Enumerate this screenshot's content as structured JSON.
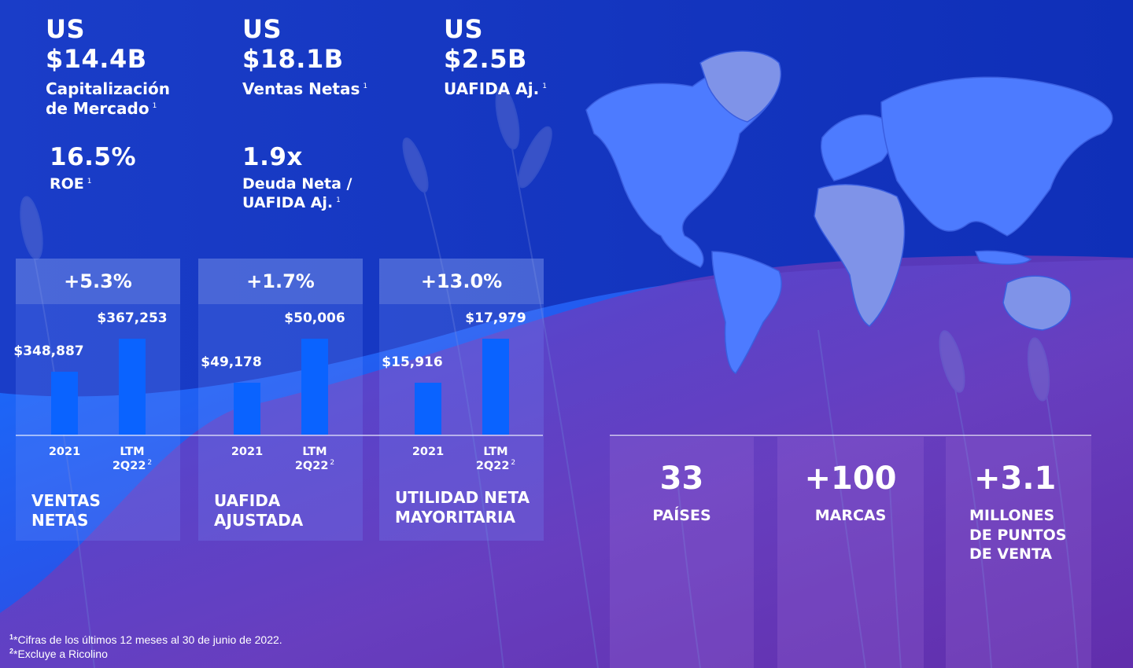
{
  "kpis": {
    "market_cap": {
      "currency": "US",
      "value": "$14.4B",
      "label_line1": "Capitalización",
      "label_line2": "de Mercado",
      "footnote": "1"
    },
    "net_sales": {
      "currency": "US",
      "value": "$18.1B",
      "label": "Ventas Netas",
      "footnote": "1"
    },
    "ebitda": {
      "currency": "US",
      "value": "$2.5B",
      "label": "UAFIDA Aj.",
      "footnote": "1"
    },
    "roe": {
      "value": "16.5%",
      "label": "ROE",
      "footnote": "1"
    },
    "leverage": {
      "value": "1.9x",
      "label_line1": "Deuda Neta /",
      "label_line2": "UAFIDA Aj.",
      "footnote": "1"
    }
  },
  "panels": [
    {
      "growth": "+5.3%",
      "title_line1": "VENTAS",
      "title_line2": "NETAS"
    },
    {
      "growth": "+1.7%",
      "title_line1": "UAFIDA",
      "title_line2": "AJUSTADA"
    },
    {
      "growth": "+13.0%",
      "title_line1": "UTILIDAD NETA",
      "title_line2": "MAYORITARIA"
    }
  ],
  "chart_data": [
    {
      "type": "bar",
      "categories": [
        "2021",
        "LTM 2Q22"
      ],
      "values": [
        348887,
        367253
      ],
      "value_labels": [
        "$348,887",
        "$367,253"
      ]
    },
    {
      "type": "bar",
      "categories": [
        "2021",
        "LTM 2Q22"
      ],
      "values": [
        49178,
        50006
      ],
      "value_labels": [
        "$49,178",
        "$50,006"
      ]
    },
    {
      "type": "bar",
      "categories": [
        "2021",
        "LTM 2Q22"
      ],
      "values": [
        15916,
        17979
      ],
      "value_labels": [
        "$15,916",
        "$17,979"
      ]
    }
  ],
  "x_labels": {
    "first": "2021",
    "second_line1": "LTM",
    "second_line2": "2Q22",
    "second_footnote": "2"
  },
  "stats": [
    {
      "number": "33",
      "caption": "PAÍSES"
    },
    {
      "number": "+100",
      "caption": "MARCAS"
    },
    {
      "number": "+3.1",
      "caption_line1": "MILLONES",
      "caption_line2": "DE PUNTOS",
      "caption_line3": "DE VENTA"
    }
  ],
  "footnotes": [
    {
      "mark": "1",
      "text": "*Cifras de los últimos 12 meses al 30 de junio de 2022."
    },
    {
      "mark": "2",
      "text": "*Excluye a Ricolino"
    }
  ],
  "colors": {
    "background_top": "#1538c4",
    "wave_bottom_left": "#1565ff",
    "wave_purple": "#8a3fb0",
    "bar": "#0a63ff",
    "map": "#4d7bff"
  },
  "icons": [
    "world-map",
    "wheat-stalks"
  ]
}
